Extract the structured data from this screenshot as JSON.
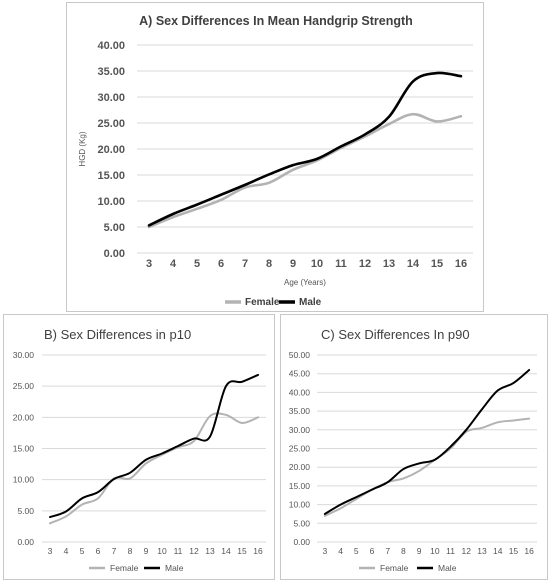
{
  "colors": {
    "female": "#b3b3b3",
    "male": "#000000",
    "grid": "#d9d9d9"
  },
  "chart_data": [
    {
      "type": "line",
      "title": "A) Sex Differences In Mean Handgrip Strength",
      "xlabel": "Age (Years)",
      "ylabel": "HGD (Kg)",
      "x": [
        3,
        4,
        5,
        6,
        7,
        8,
        9,
        10,
        11,
        12,
        13,
        14,
        15,
        16
      ],
      "y_ticks": [
        "0.00",
        "5.00",
        "10.00",
        "15.00",
        "20.00",
        "25.00",
        "30.00",
        "35.00",
        "40.00"
      ],
      "ylim": [
        0,
        40
      ],
      "grid": true,
      "legend_position": "bottom",
      "series": [
        {
          "name": "Female",
          "values": [
            5.0,
            6.9,
            8.5,
            10.2,
            12.6,
            13.5,
            16.0,
            17.8,
            20.2,
            22.4,
            24.8,
            26.7,
            25.3,
            26.3
          ]
        },
        {
          "name": "Male",
          "values": [
            5.3,
            7.5,
            9.3,
            11.2,
            13.1,
            15.1,
            16.9,
            18.1,
            20.5,
            22.8,
            26.2,
            33.0,
            34.6,
            34.0
          ]
        }
      ]
    },
    {
      "type": "line",
      "title": "B) Sex Differences in p10",
      "xlabel": "",
      "ylabel": "",
      "x": [
        3,
        4,
        5,
        6,
        7,
        8,
        9,
        10,
        11,
        12,
        13,
        14,
        15,
        16
      ],
      "y_ticks": [
        "0.00",
        "5.00",
        "10.00",
        "15.00",
        "20.00",
        "25.00",
        "30.00"
      ],
      "ylim": [
        0,
        30
      ],
      "grid": true,
      "legend_position": "bottom",
      "series": [
        {
          "name": "Female",
          "values": [
            3.0,
            4.1,
            6.0,
            7.0,
            10.2,
            10.2,
            12.6,
            14.0,
            15.2,
            16.2,
            20.2,
            20.4,
            19.1,
            20.0
          ]
        },
        {
          "name": "Male",
          "values": [
            4.0,
            4.9,
            7.0,
            8.0,
            10.1,
            11.1,
            13.2,
            14.2,
            15.4,
            16.6,
            16.9,
            25.0,
            25.7,
            26.8
          ]
        }
      ]
    },
    {
      "type": "line",
      "title": "C) Sex Differences In p90",
      "xlabel": "",
      "ylabel": "",
      "x": [
        3,
        4,
        5,
        6,
        7,
        8,
        9,
        10,
        11,
        12,
        13,
        14,
        15,
        16
      ],
      "y_ticks": [
        "0.00",
        "5.00",
        "10.00",
        "15.00",
        "20.00",
        "25.00",
        "30.00",
        "35.00",
        "40.00",
        "45.00",
        "50.00"
      ],
      "ylim": [
        0,
        50
      ],
      "grid": true,
      "legend_position": "bottom",
      "series": [
        {
          "name": "Female",
          "values": [
            7.0,
            9.0,
            11.5,
            14.0,
            16.0,
            17.0,
            19.0,
            22.0,
            25.0,
            29.5,
            30.5,
            32.0,
            32.5,
            33.0
          ]
        },
        {
          "name": "Male",
          "values": [
            7.5,
            10.0,
            12.0,
            14.0,
            16.0,
            19.5,
            21.0,
            22.0,
            25.5,
            30.0,
            35.5,
            40.5,
            42.5,
            46.0
          ]
        }
      ]
    }
  ]
}
